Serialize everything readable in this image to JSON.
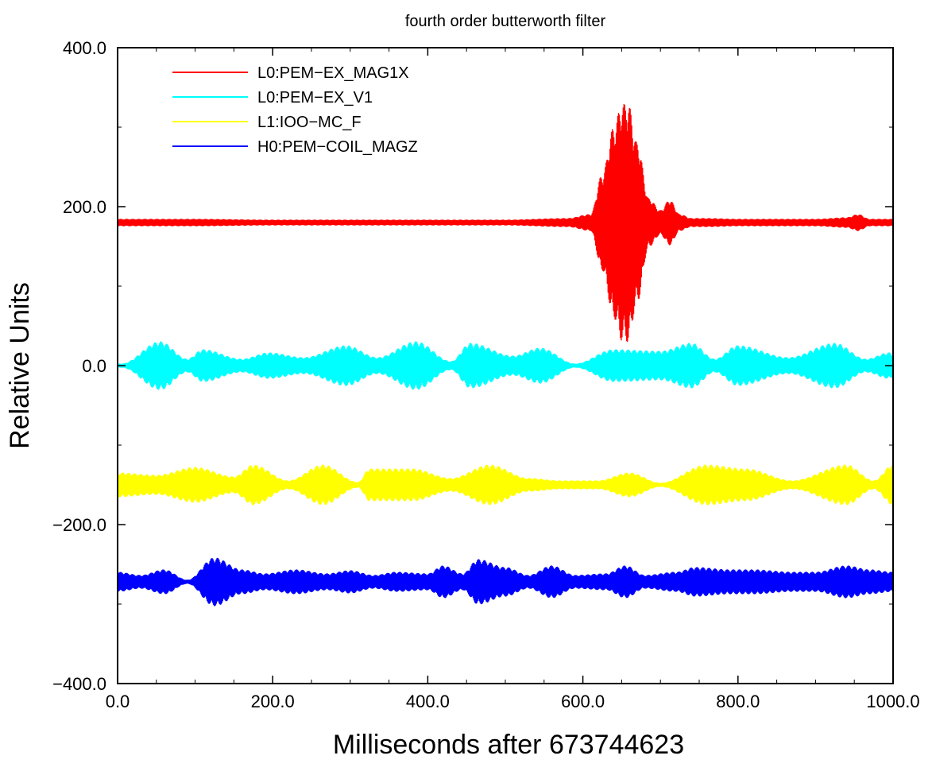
{
  "chart_data": {
    "type": "line",
    "title": "fourth order butterworth filter",
    "xlabel": "Milliseconds after 673744623",
    "ylabel": "Relative Units",
    "xlim": [
      0,
      1000
    ],
    "ylim": [
      -400,
      400
    ],
    "xticks": [
      0,
      200,
      400,
      600,
      800,
      1000
    ],
    "xtick_labels": [
      "0.0",
      "200.0",
      "400.0",
      "600.0",
      "800.0",
      "1000.0"
    ],
    "yticks": [
      -400,
      -200,
      0,
      200,
      400
    ],
    "ytick_labels": [
      "−400.0",
      "−200.0",
      "0.0",
      "200.0",
      "400.0"
    ],
    "grid": false,
    "legend_position": "top-left",
    "series": [
      {
        "name": "L0:PEM−EX_MAG1X",
        "color": "#ff0000",
        "baseline": 180,
        "envelope": {
          "x": [
            0,
            100,
            200,
            300,
            400,
            500,
            580,
            610,
            625,
            640,
            650,
            658,
            670,
            685,
            700,
            712,
            725,
            740,
            760,
            800,
            900,
            940,
            955,
            970,
            1000
          ],
          "amplitude": [
            4,
            4,
            3,
            3,
            3,
            3,
            5,
            10,
            60,
            120,
            148,
            150,
            100,
            30,
            15,
            28,
            10,
            5,
            5,
            4,
            4,
            6,
            10,
            4,
            4
          ]
        }
      },
      {
        "name": "L0:PEM−EX_V1",
        "color": "#00ffff",
        "baseline": 0,
        "envelope": {
          "x": [
            0,
            5,
            55,
            90,
            110,
            160,
            195,
            240,
            295,
            335,
            385,
            430,
            455,
            510,
            545,
            590,
            640,
            700,
            740,
            770,
            800,
            865,
            925,
            965,
            995,
            1000
          ],
          "amplitude": [
            2,
            2,
            30,
            8,
            20,
            8,
            16,
            10,
            25,
            10,
            30,
            5,
            28,
            12,
            22,
            2,
            20,
            18,
            28,
            8,
            25,
            10,
            28,
            8,
            16,
            14
          ]
        }
      },
      {
        "name": "L1:IOO−MC_F",
        "color": "#ffff00",
        "baseline": -150,
        "envelope": {
          "x": [
            0,
            50,
            100,
            150,
            175,
            220,
            265,
            310,
            325,
            380,
            430,
            480,
            530,
            570,
            620,
            660,
            700,
            760,
            810,
            870,
            940,
            975,
            1000
          ],
          "amplitude": [
            15,
            12,
            22,
            10,
            25,
            5,
            25,
            3,
            20,
            20,
            8,
            25,
            8,
            5,
            5,
            15,
            2,
            25,
            20,
            5,
            25,
            5,
            25
          ]
        }
      },
      {
        "name": "H0:PEM−COIL_MAGZ",
        "color": "#0000ff",
        "baseline": -272,
        "envelope": {
          "x": [
            0,
            30,
            60,
            90,
            125,
            160,
            190,
            230,
            270,
            300,
            330,
            360,
            400,
            420,
            445,
            465,
            500,
            530,
            560,
            590,
            630,
            655,
            680,
            720,
            745,
            790,
            820,
            870,
            900,
            940,
            970,
            1000
          ],
          "amplitude": [
            12,
            8,
            15,
            2,
            30,
            15,
            10,
            15,
            10,
            14,
            8,
            12,
            10,
            20,
            10,
            28,
            18,
            8,
            20,
            8,
            10,
            20,
            8,
            12,
            18,
            15,
            15,
            12,
            12,
            20,
            15,
            12
          ]
        }
      }
    ]
  }
}
